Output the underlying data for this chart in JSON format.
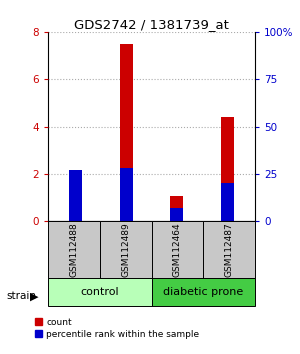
{
  "title": "GDS2742 / 1381739_at",
  "samples": [
    "GSM112488",
    "GSM112489",
    "GSM112464",
    "GSM112487"
  ],
  "count_values": [
    0.32,
    7.5,
    1.05,
    4.4
  ],
  "percentile_values": [
    27,
    28,
    7,
    20
  ],
  "ylim_left": [
    0,
    8
  ],
  "ylim_right": [
    0,
    100
  ],
  "yticks_left": [
    0,
    2,
    4,
    6,
    8
  ],
  "yticks_right": [
    0,
    25,
    50,
    75,
    100
  ],
  "ytick_labels_left": [
    "0",
    "2",
    "4",
    "6",
    "8"
  ],
  "ytick_labels_right": [
    "0",
    "25",
    "50",
    "75",
    "100%"
  ],
  "count_color": "#cc0000",
  "percentile_color": "#0000cc",
  "sample_box_color": "#c8c8c8",
  "control_color": "#b8ffb8",
  "diabetic_color": "#44cc44",
  "grid_linestyle": ":",
  "grid_color": "#aaaaaa",
  "background_color": "#ffffff",
  "strain_label": "strain",
  "group_labels": [
    "control",
    "diabetic prone"
  ],
  "legend_count": "count",
  "legend_percentile": "percentile rank within the sample",
  "bar_width": 0.25
}
